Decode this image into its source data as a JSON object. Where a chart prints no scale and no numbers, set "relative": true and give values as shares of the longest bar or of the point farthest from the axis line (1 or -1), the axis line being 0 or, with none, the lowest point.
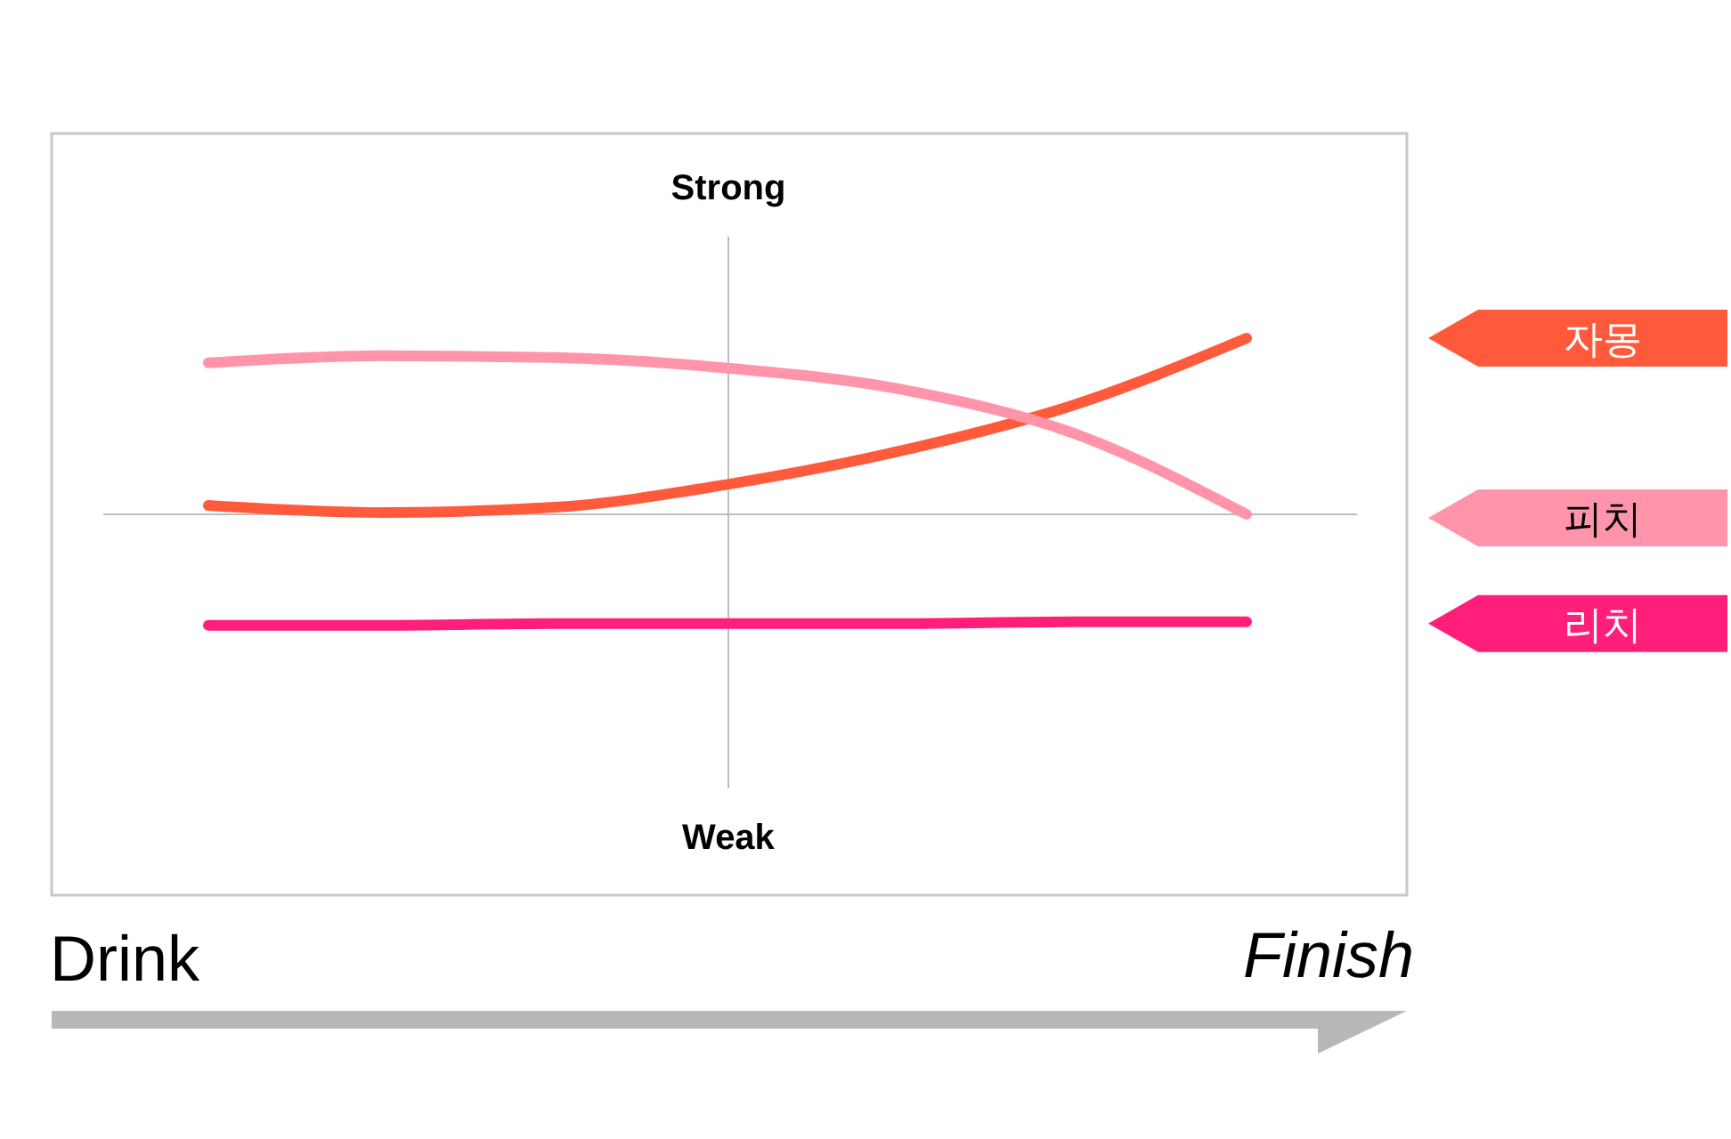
{
  "chart_data": {
    "type": "line",
    "relative": true,
    "legend": "right",
    "categories": [
      null,
      null,
      null,
      null,
      null,
      null,
      null
    ],
    "series": [
      {
        "name": "자몽",
        "color": "#ff5a3c",
        "values": [
          0.05,
          0.01,
          0.04,
          0.17,
          0.36,
          0.62,
          1
        ]
      },
      {
        "name": "피치",
        "color": "#ff94aa",
        "values": [
          0.86,
          0.9,
          0.89,
          0.83,
          0.71,
          0.46,
          0
        ]
      },
      {
        "name": "리치",
        "color": "#ff1f7a",
        "values": [
          -0.63,
          -0.63,
          -0.62,
          -0.62,
          -0.62,
          -0.61,
          -0.61
        ]
      }
    ],
    "annotations": [
      "Strong",
      "Weak",
      "Drink",
      "Finish"
    ]
  }
}
